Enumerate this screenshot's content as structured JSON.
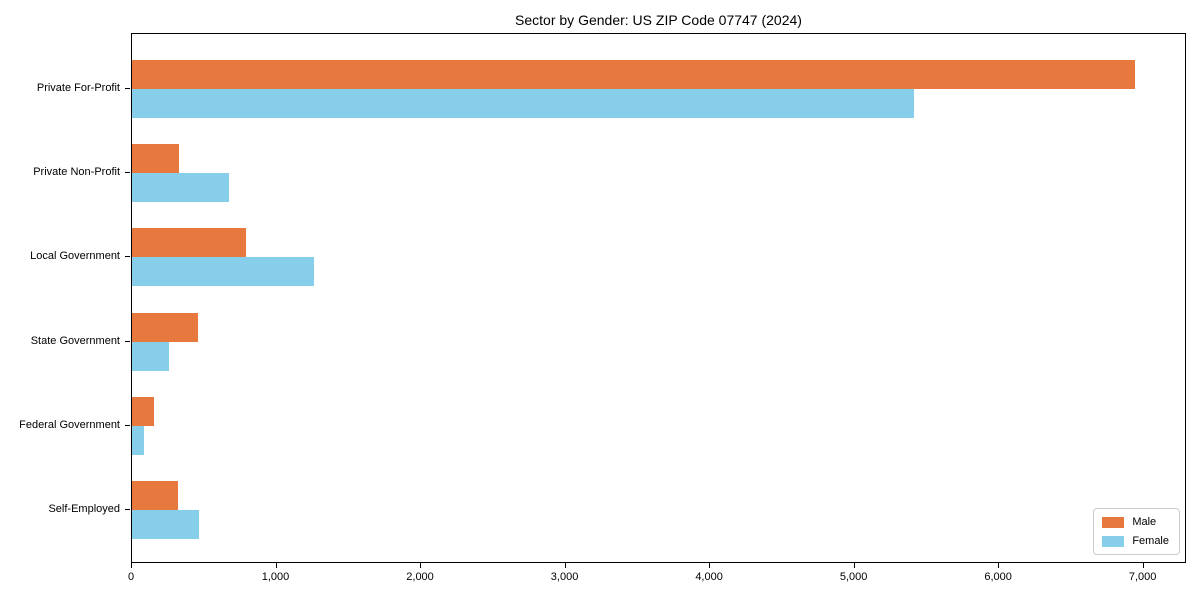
{
  "chart_data": {
    "type": "bar",
    "orientation": "horizontal",
    "title": "Sector by Gender: US ZIP Code 07747 (2024)",
    "categories": [
      "Private For-Profit",
      "Private Non-Profit",
      "Local Government",
      "State Government",
      "Federal Government",
      "Self-Employed"
    ],
    "series": [
      {
        "name": "Male",
        "color": "#e8793e",
        "values": [
          6940,
          325,
          790,
          455,
          150,
          320
        ]
      },
      {
        "name": "Female",
        "color": "#87ceeb",
        "values": [
          5410,
          670,
          1260,
          255,
          85,
          465
        ]
      }
    ],
    "xlabel": "",
    "ylabel": "",
    "xlim": [
      0,
      7300
    ],
    "xticks": [
      0,
      1000,
      2000,
      3000,
      4000,
      5000,
      6000,
      7000
    ],
    "xtick_labels": [
      "0",
      "1,000",
      "2,000",
      "3,000",
      "4,000",
      "5,000",
      "6,000",
      "7,000"
    ],
    "grid": false,
    "legend": {
      "position": "lower right",
      "entries": [
        "Male",
        "Female"
      ]
    }
  }
}
